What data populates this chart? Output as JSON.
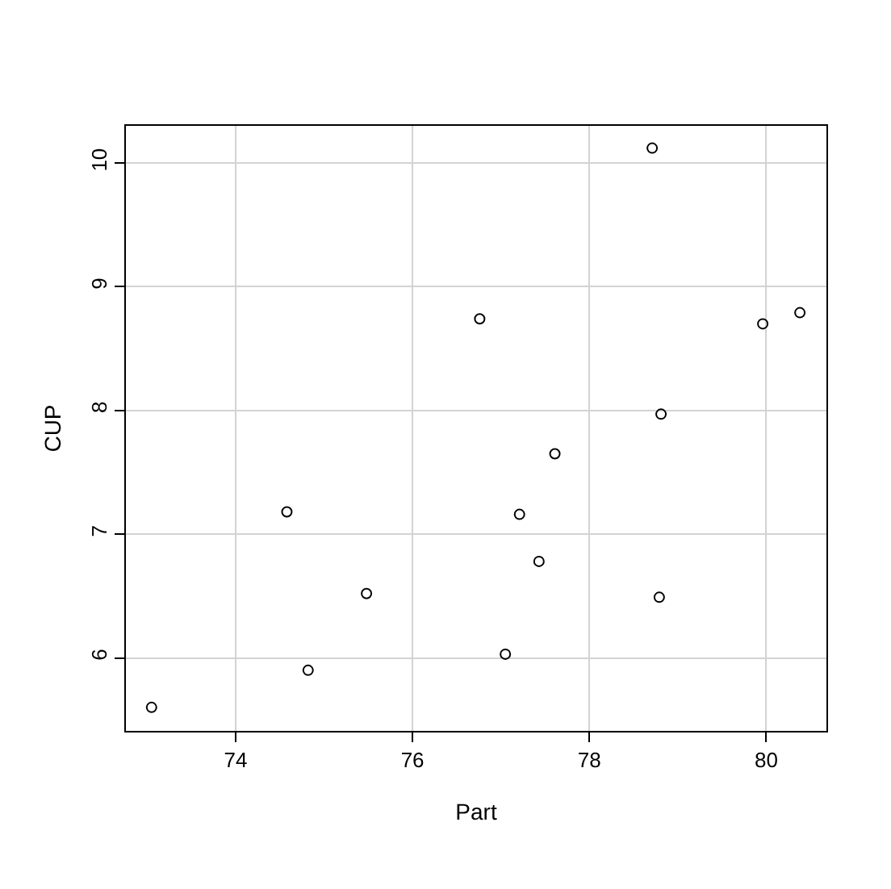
{
  "chart_data": {
    "type": "scatter",
    "xlabel": "Part",
    "ylabel": "CUP",
    "x": [
      73.05,
      74.58,
      74.82,
      75.48,
      76.76,
      77.05,
      77.21,
      77.43,
      77.61,
      78.71,
      78.81,
      78.79,
      79.96,
      80.38
    ],
    "series": [
      {
        "color": "#000000",
        "values": [
          5.6,
          7.18,
          5.9,
          6.52,
          8.74,
          6.03,
          7.16,
          6.78,
          7.65,
          10.12,
          7.97,
          6.49,
          8.7,
          8.79
        ]
      }
    ],
    "xlim": [
      72.76,
      80.68
    ],
    "ylim": [
      5.41,
      10.3
    ],
    "xticks": [
      74,
      76,
      78,
      80
    ],
    "yticks": [
      6,
      7,
      8,
      9,
      10
    ],
    "grid": true,
    "marker": "circle"
  }
}
